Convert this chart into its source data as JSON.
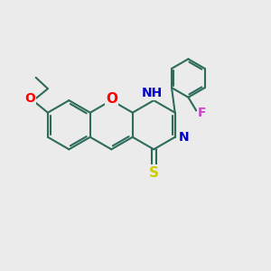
{
  "bg_color": "#ebebeb",
  "bond_color": "#2d6b5a",
  "bond_width": 1.5,
  "o_color": "#ff0000",
  "n_color": "#0000cc",
  "f_color": "#cc44cc",
  "s_color": "#cccc00",
  "label_fontsize": 10,
  "figsize": [
    3.0,
    3.0
  ],
  "dpi": 100,
  "xlim": [
    0,
    10
  ],
  "ylim": [
    0,
    10
  ]
}
